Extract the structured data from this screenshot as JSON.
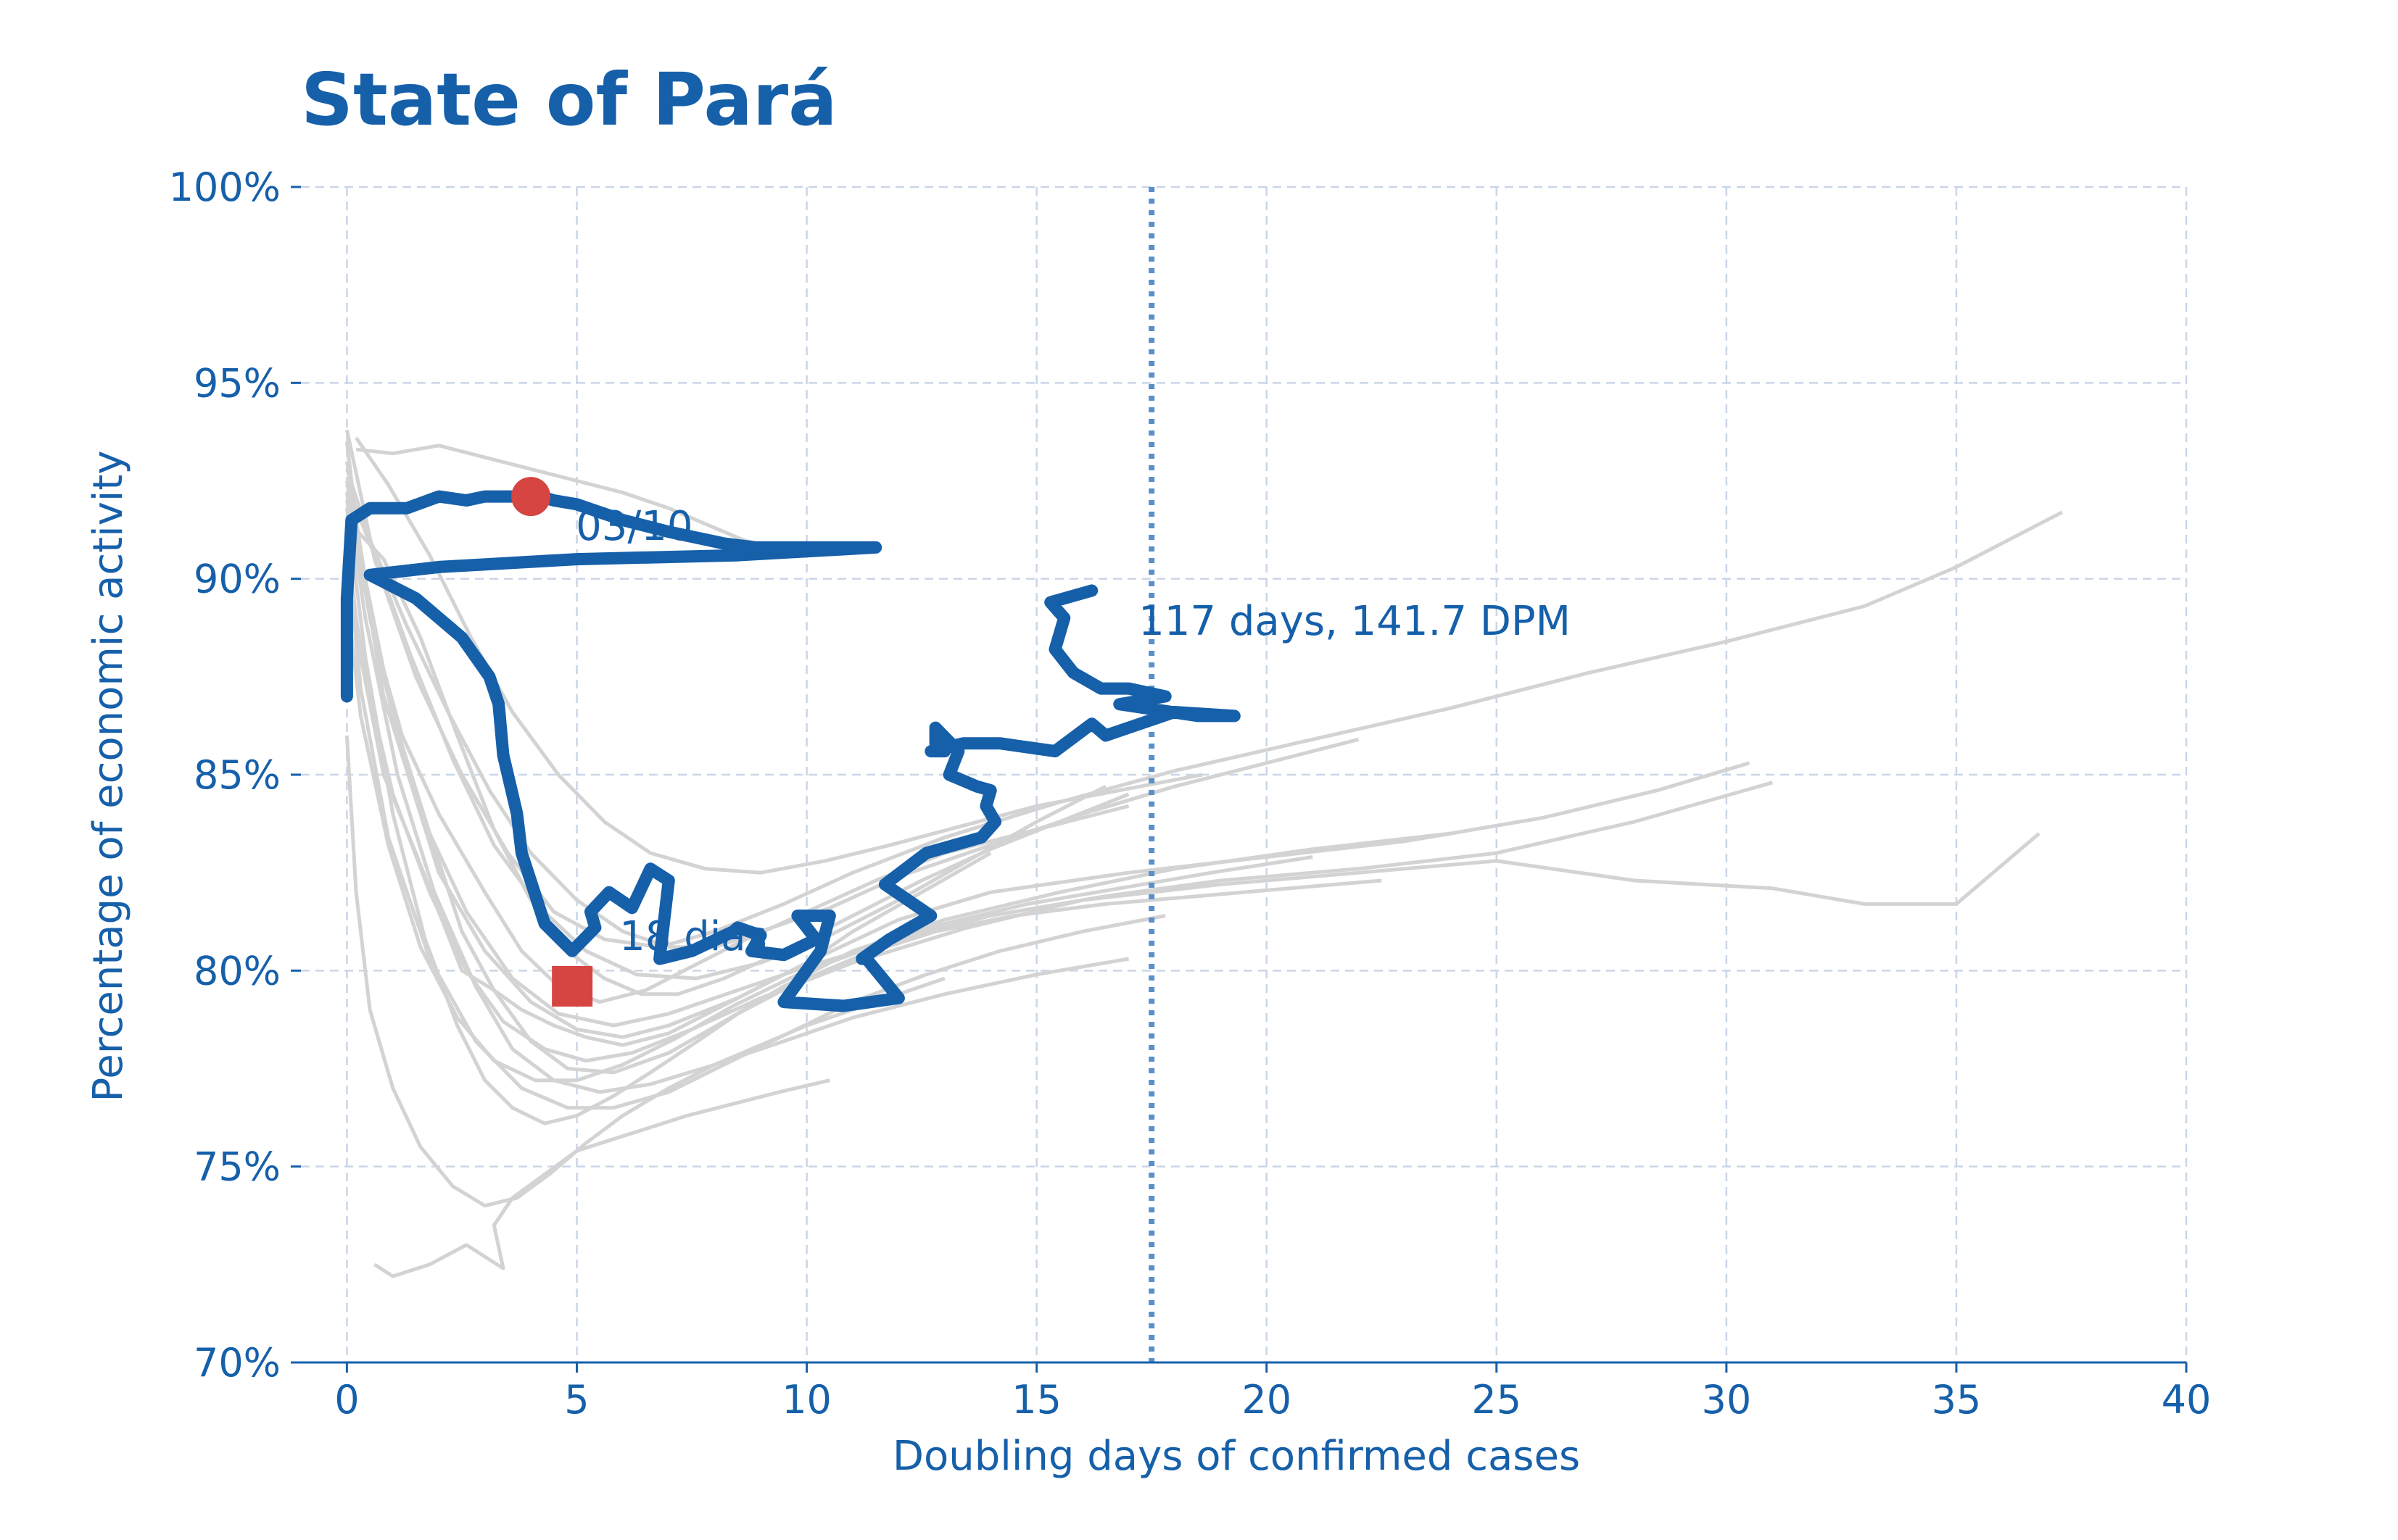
{
  "chart_data": {
    "type": "line",
    "title": "State of Pará",
    "xlabel": "Doubling days of confirmed cases",
    "ylabel": "Percentage of economic activity",
    "xlim": [
      -1,
      40
    ],
    "ylim": [
      70,
      100
    ],
    "x_ticks": [
      "0",
      "5",
      "10",
      "15",
      "20",
      "25",
      "30",
      "35",
      "40"
    ],
    "y_ticks": [
      "70%",
      "75%",
      "80%",
      "85%",
      "90%",
      "95%",
      "100%"
    ],
    "grid": true,
    "colors": {
      "highlight": "#1660aa",
      "others": "#d3d3d3",
      "marker": "#d64541",
      "reference": "#5b8fca"
    },
    "highlight_series": {
      "x": [
        0,
        0,
        0.1,
        0.5,
        1,
        1.3,
        2,
        2.6,
        3,
        3.4,
        4,
        4.2,
        4.5,
        5,
        5.5,
        6,
        7,
        7.8,
        8.2,
        8.9,
        9.8,
        11.5,
        8.5,
        5,
        2,
        0.5,
        1.5,
        2.5,
        3.1,
        3.3,
        3.4,
        3.7,
        3.8,
        4.3,
        4.9,
        5.4,
        5.3,
        5.7,
        6.2,
        6.6,
        7,
        6.8,
        7.5,
        8.4,
        8.5,
        9,
        8.8,
        9.5,
        10.2,
        9.8,
        10.5,
        10.3,
        9.5,
        10.8,
        12,
        11.3,
        11.2,
        11.8,
        12.7,
        11.7,
        11.7,
        12.6,
        13.8,
        14.1,
        13.9,
        14,
        13.7,
        13.1,
        13.3,
        12.8,
        12.8,
        13,
        12.7,
        13.4,
        14.2,
        15.4,
        16.2,
        16.5,
        18,
        19.3,
        18.5,
        16.8,
        17.8,
        17,
        16.4,
        15.8,
        15.4,
        15.6,
        15.3,
        16.2
      ],
      "y": [
        87,
        89.5,
        91.5,
        91.8,
        91.8,
        91.8,
        92.1,
        92,
        92.1,
        92.1,
        92.1,
        92.1,
        92,
        91.9,
        91.7,
        91.5,
        91.2,
        91,
        90.9,
        90.8,
        90.8,
        90.8,
        90.6,
        90.5,
        90.3,
        90.1,
        89.5,
        88.5,
        87.5,
        86.8,
        85.5,
        84,
        83,
        81.2,
        80.5,
        81.1,
        81.5,
        82,
        81.6,
        82.6,
        82.3,
        80.3,
        80.5,
        81,
        81.1,
        80.9,
        80.5,
        80.4,
        80.8,
        81.4,
        81.4,
        80.5,
        79.2,
        79.1,
        79.3,
        80.3,
        80.3,
        80.8,
        81.4,
        82.2,
        82.2,
        83,
        83.4,
        83.8,
        84.2,
        84.6,
        84.7,
        85,
        85.6,
        86.2,
        85.8,
        85.6,
        85.6,
        85.8,
        85.8,
        85.6,
        86.3,
        86,
        86.6,
        86.5,
        86.5,
        86.8,
        87,
        87.2,
        87.2,
        87.6,
        88.2,
        89,
        89.4,
        89.7
      ]
    },
    "other_series": [
      {
        "x": [
          0,
          0.3,
          0.8,
          1.5,
          2,
          2.5,
          3.2,
          3.8,
          4.5,
          5.2,
          6,
          7,
          8,
          9,
          10,
          11,
          12.5,
          14
        ],
        "y": [
          91,
          88,
          85,
          83,
          81.5,
          80,
          79.5,
          79,
          78.6,
          78.3,
          78.1,
          78.4,
          79,
          79.6,
          80.2,
          81,
          82,
          83
        ]
      },
      {
        "x": [
          0,
          0.6,
          1.2,
          2,
          3,
          3.8,
          4.6,
          5.5,
          6.5,
          7.5,
          8.5,
          10,
          11.5,
          13,
          15,
          17
        ],
        "y": [
          92,
          88.5,
          86,
          84,
          82,
          80.5,
          79.6,
          79.2,
          79.5,
          80.1,
          80.7,
          81.5,
          82.3,
          83,
          83.6,
          84.2
        ]
      },
      {
        "x": [
          0,
          0.4,
          1,
          1.8,
          2.5,
          3.2,
          4,
          4.8,
          5.8,
          7,
          8.2,
          9.5,
          11,
          13,
          15.5,
          18,
          21,
          24
        ],
        "y": [
          93,
          90,
          86.5,
          83.5,
          81,
          79.5,
          78.2,
          77.5,
          77.4,
          77.9,
          78.7,
          79.6,
          80.5,
          81.3,
          82,
          82.6,
          83.1,
          83.5
        ]
      },
      {
        "x": [
          0,
          0.5,
          1.2,
          2,
          3,
          4,
          5,
          6,
          7,
          8.5,
          10,
          12,
          14,
          17,
          20,
          23,
          26,
          28.5,
          30.5
        ],
        "y": [
          92.5,
          89,
          85.5,
          82.5,
          80.5,
          79.2,
          78.5,
          78.3,
          78.6,
          79.3,
          80.2,
          81.3,
          82,
          82.5,
          82.9,
          83.3,
          83.9,
          84.6,
          85.3
        ]
      },
      {
        "x": [
          0,
          0.3,
          0.8,
          1.6,
          2.6,
          3.6,
          4.6,
          5.8,
          7,
          8.5,
          10,
          12,
          14,
          16.5,
          19,
          22,
          25,
          28,
          31
        ],
        "y": [
          93.5,
          90.5,
          87,
          84,
          81.5,
          79.8,
          78.9,
          78.6,
          78.9,
          79.5,
          80.1,
          80.8,
          81.4,
          81.9,
          82.3,
          82.6,
          83,
          83.8,
          84.8
        ]
      },
      {
        "x": [
          0,
          0.6,
          1.5,
          2.5,
          3.5,
          4.5,
          5.6,
          6.8,
          8,
          9.5,
          11,
          13,
          15.5,
          18,
          21,
          24,
          27,
          30,
          33,
          35,
          37.3
        ],
        "y": [
          93.8,
          90.5,
          87.5,
          85,
          83,
          81.5,
          80.8,
          80.6,
          81,
          81.7,
          82.5,
          83.4,
          84.3,
          85.1,
          85.9,
          86.7,
          87.6,
          88.4,
          89.3,
          90.3,
          91.7
        ]
      },
      {
        "x": [
          0,
          0.4,
          1,
          1.8,
          2.6,
          3.4,
          4.3,
          5.2,
          6.2,
          7.5,
          9,
          11,
          13.5,
          16,
          19,
          22,
          25,
          28,
          31,
          33,
          35,
          36.8
        ],
        "y": [
          90.5,
          87.5,
          84.5,
          82,
          80,
          78.7,
          78,
          77.7,
          77.9,
          78.5,
          79.3,
          80.2,
          81.1,
          81.8,
          82.2,
          82.5,
          82.8,
          82.3,
          82.1,
          81.7,
          81.7,
          83.5
        ]
      },
      {
        "x": [
          0,
          0.2,
          0.5,
          1,
          1.6,
          2.3,
          3,
          3.7,
          4.4,
          5.2,
          6,
          7,
          8,
          9,
          10,
          11,
          12,
          13
        ],
        "y": [
          86,
          82,
          79,
          77,
          75.5,
          74.5,
          74,
          74.2,
          74.8,
          75.6,
          76.3,
          77,
          77.6,
          78.1,
          78.6,
          79,
          79.4,
          79.8
        ]
      },
      {
        "x": [
          0.6,
          1,
          1.8,
          2.6,
          3.4,
          3.2,
          3.6,
          4.3,
          5,
          5.8,
          6.6,
          7.4,
          8.4,
          9.4,
          10.5
        ],
        "y": [
          72.5,
          72.2,
          72.5,
          73,
          72.4,
          73.5,
          74.2,
          74.8,
          75.4,
          75.7,
          76,
          76.3,
          76.6,
          76.9,
          77.2
        ]
      },
      {
        "x": [
          0,
          0.4,
          1.1,
          1.9,
          2.8,
          3.6,
          4.5,
          5.5,
          6.6,
          8,
          9.5,
          11,
          13,
          15,
          17
        ],
        "y": [
          92.2,
          89,
          85,
          82,
          79.6,
          78,
          77.2,
          76.9,
          77.1,
          77.6,
          78.2,
          78.8,
          79.4,
          79.9,
          80.3
        ]
      },
      {
        "x": [
          0,
          0.8,
          1.6,
          2.4,
          3.2,
          4,
          4.8,
          5.6,
          6.4,
          7.2,
          8.2,
          9.5,
          11,
          12.5,
          14,
          15.5,
          17
        ],
        "y": [
          91.5,
          90.5,
          88.5,
          86,
          83.6,
          81.8,
          80.5,
          79.8,
          79.4,
          79.4,
          79.8,
          80.5,
          81.4,
          82.3,
          83.1,
          83.8,
          84.5
        ]
      },
      {
        "x": [
          0,
          0.5,
          1.3,
          2.2,
          3.1,
          4,
          5,
          6,
          7,
          8,
          9,
          10.5,
          12,
          14,
          16,
          18,
          20,
          22
        ],
        "y": [
          92.8,
          91,
          88.8,
          86.6,
          84.6,
          83,
          81.8,
          81,
          80.6,
          80.6,
          81,
          81.6,
          82.4,
          83.2,
          84,
          84.7,
          85.3,
          85.9
        ]
      },
      {
        "x": [
          0.2,
          1,
          2,
          3,
          4,
          5,
          6,
          7,
          8,
          8.6,
          9.2,
          9.8
        ],
        "y": [
          93.3,
          93.2,
          93.4,
          93.1,
          92.8,
          92.5,
          92.2,
          91.8,
          91.3,
          91,
          90.8,
          90.6
        ]
      },
      {
        "x": [
          0,
          0.4,
          1,
          1.7,
          2.4,
          3,
          3.6,
          4.3,
          5,
          5.8,
          6.6,
          7.5,
          8.5,
          9.8,
          11.2,
          12.8,
          14.5,
          16.5,
          18.5,
          20.5,
          22.5
        ],
        "y": [
          91.8,
          88,
          84,
          80.8,
          78.6,
          77.2,
          76.5,
          76.1,
          76.3,
          76.8,
          77.4,
          78.1,
          78.9,
          79.7,
          80.4,
          81,
          81.4,
          81.7,
          81.9,
          82.1,
          82.3
        ]
      },
      {
        "x": [
          0,
          0.3,
          0.9,
          1.6,
          2.4,
          3.2,
          4.1,
          5,
          6,
          7.2,
          8.4,
          9.8,
          11.4,
          13,
          14.8,
          16.8,
          18.8,
          21
        ],
        "y": [
          89.5,
          86.5,
          83.2,
          80.6,
          78.8,
          77.7,
          77.2,
          77.2,
          77.6,
          78.3,
          79.1,
          79.9,
          80.6,
          81.2,
          81.7,
          82.1,
          82.5,
          82.9
        ]
      },
      {
        "x": [
          0,
          0.6,
          1.4,
          2.3,
          3.2,
          4.2,
          5.2,
          6.3,
          7.6,
          9,
          10.5,
          12,
          13.5,
          15,
          16.5
        ],
        "y": [
          92.4,
          90.6,
          88,
          85.4,
          83.2,
          81.6,
          80.5,
          79.9,
          79.8,
          80.2,
          80.9,
          81.8,
          82.8,
          83.8,
          84.7
        ]
      },
      {
        "x": [
          0,
          0.3,
          0.9,
          1.8,
          2.8,
          3.8,
          4.8,
          5.8,
          7,
          8.2,
          9.6,
          11,
          12.6,
          14.2,
          16,
          17.8
        ],
        "y": [
          90.8,
          87.2,
          83.4,
          80.3,
          78.2,
          77,
          76.5,
          76.5,
          76.9,
          77.6,
          78.4,
          79.2,
          79.9,
          80.5,
          81,
          81.4
        ]
      },
      {
        "x": [
          0.2,
          0.9,
          1.8,
          2.7,
          3.6,
          4.6,
          5.6,
          6.6,
          7.8,
          9,
          10.4,
          11.8,
          13.4,
          15,
          16.8,
          18.6
        ],
        "y": [
          93.6,
          92.4,
          90.6,
          88.5,
          86.6,
          85,
          83.8,
          83,
          82.6,
          82.5,
          82.8,
          83.2,
          83.7,
          84.2,
          84.6,
          85
        ]
      }
    ],
    "start_marker": {
      "x": 4,
      "y": 92.1,
      "label": "03/10"
    },
    "end_marker": {
      "x": 4.9,
      "y": 79.6,
      "label": "18 dias"
    },
    "reference_line": {
      "x": 17.5,
      "label": "117 days, 141.7 DPM"
    }
  }
}
